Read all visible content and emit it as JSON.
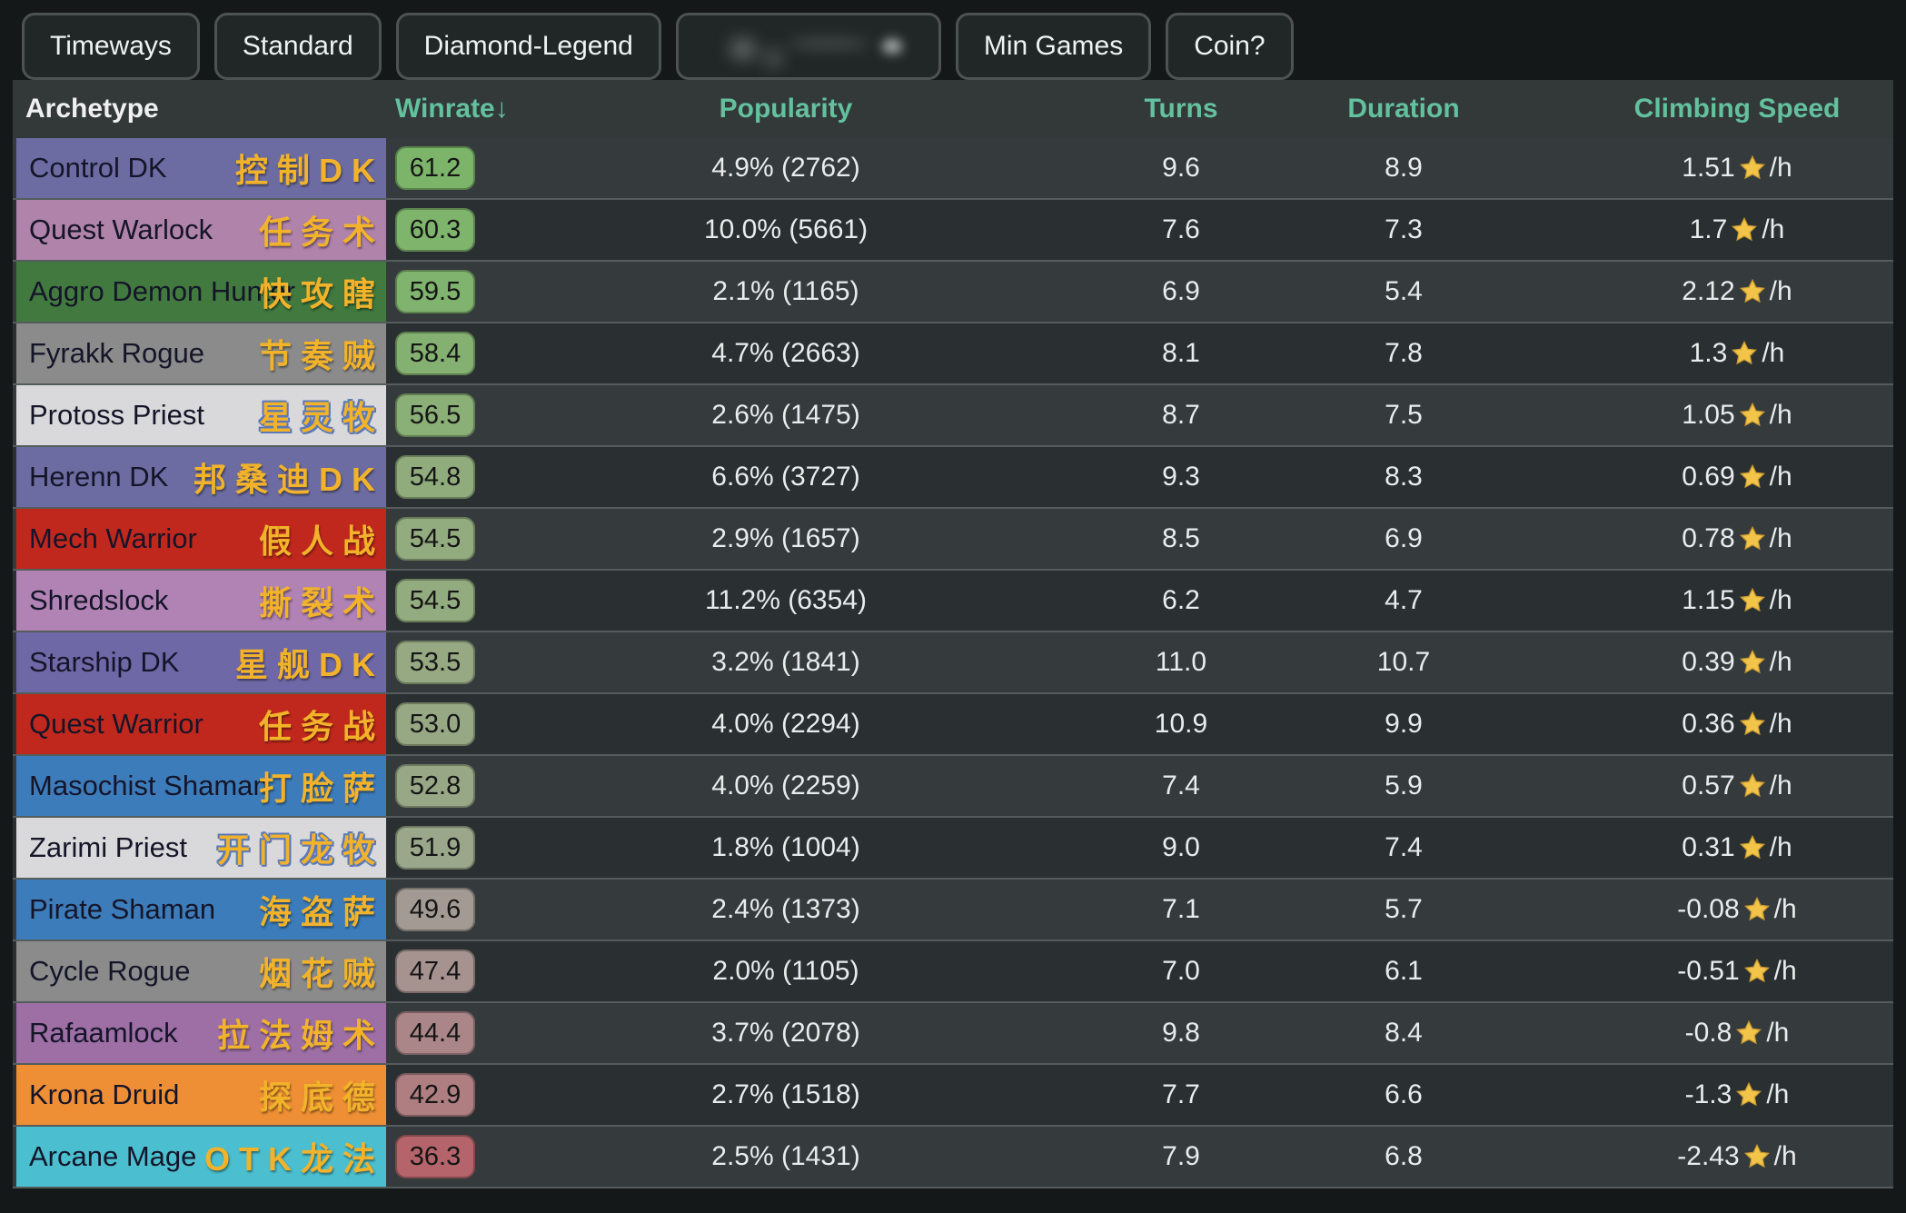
{
  "toolbar": {
    "buttons": [
      {
        "label": "Timeways",
        "censored": false
      },
      {
        "label": "Standard",
        "censored": false
      },
      {
        "label": "Diamond-Legend",
        "censored": false
      },
      {
        "label": "",
        "censored": true
      },
      {
        "label": "Min Games",
        "censored": false
      },
      {
        "label": "Coin?",
        "censored": false
      }
    ]
  },
  "table": {
    "headers": {
      "archetype": "Archetype",
      "winrate": "Winrate↓",
      "popularity": "Popularity",
      "turns": "Turns",
      "duration": "Duration",
      "climbing_speed": "Climbing Speed"
    },
    "climb_unit": "/h",
    "star_color": "#f2c54a",
    "rows": [
      {
        "name": "Control DK",
        "nickname": "控 制 D K",
        "bg": "#6c6ca2",
        "outline": false,
        "winrate": "61.2",
        "winrate_bg": "#7cb56a",
        "popularity": "4.9% (2762)",
        "turns": "9.6",
        "duration": "8.9",
        "climb": "1.51"
      },
      {
        "name": "Quest Warlock",
        "nickname": "任 务 术",
        "bg": "#b083ab",
        "outline": false,
        "winrate": "60.3",
        "winrate_bg": "#7eb46c",
        "popularity": "10.0% (5661)",
        "turns": "7.6",
        "duration": "7.3",
        "climb": "1.7"
      },
      {
        "name": "Aggro Demon Hunter",
        "nickname": "快 攻 瞎",
        "bg": "#41793f",
        "outline": false,
        "winrate": "59.5",
        "winrate_bg": "#80b36e",
        "popularity": "2.1% (1165)",
        "turns": "6.9",
        "duration": "5.4",
        "climb": "2.12"
      },
      {
        "name": "Fyrakk Rogue",
        "nickname": "节 奏 贼",
        "bg": "#8b8b8b",
        "outline": false,
        "winrate": "58.4",
        "winrate_bg": "#84b171",
        "popularity": "4.7% (2663)",
        "turns": "8.1",
        "duration": "7.8",
        "climb": "1.3"
      },
      {
        "name": "Protoss Priest",
        "nickname": "星 灵 牧",
        "bg": "#d9d9db",
        "outline": true,
        "winrate": "56.5",
        "winrate_bg": "#8aaf77",
        "popularity": "2.6% (1475)",
        "turns": "8.7",
        "duration": "7.5",
        "climb": "1.05"
      },
      {
        "name": "Herenn DK",
        "nickname": "邦 桑 迪 D K",
        "bg": "#6c6ca2",
        "outline": false,
        "winrate": "54.8",
        "winrate_bg": "#90ac7d",
        "popularity": "6.6% (3727)",
        "turns": "9.3",
        "duration": "8.3",
        "climb": "0.69"
      },
      {
        "name": "Mech Warrior",
        "nickname": "假 人 战",
        "bg": "#c1281d",
        "outline": false,
        "winrate": "54.5",
        "winrate_bg": "#92ab7f",
        "popularity": "2.9% (1657)",
        "turns": "8.5",
        "duration": "6.9",
        "climb": "0.78"
      },
      {
        "name": "Shredslock",
        "nickname": "撕 裂 术",
        "bg": "#b083b4",
        "outline": false,
        "winrate": "54.5",
        "winrate_bg": "#92ab7f",
        "popularity": "11.2% (6354)",
        "turns": "6.2",
        "duration": "4.7",
        "climb": "1.15"
      },
      {
        "name": "Starship DK",
        "nickname": "星 舰 D K",
        "bg": "#6f68a7",
        "outline": false,
        "winrate": "53.5",
        "winrate_bg": "#96a983",
        "popularity": "3.2% (1841)",
        "turns": "11.0",
        "duration": "10.7",
        "climb": "0.39"
      },
      {
        "name": "Quest Warrior",
        "nickname": "任 务 战",
        "bg": "#c1281d",
        "outline": false,
        "winrate": "53.0",
        "winrate_bg": "#97a884",
        "popularity": "4.0% (2294)",
        "turns": "10.9",
        "duration": "9.9",
        "climb": "0.36"
      },
      {
        "name": "Masochist Shaman",
        "nickname": "打 脸 萨",
        "bg": "#3d7cba",
        "outline": false,
        "winrate": "52.8",
        "winrate_bg": "#98a785",
        "popularity": "4.0% (2259)",
        "turns": "7.4",
        "duration": "5.9",
        "climb": "0.57"
      },
      {
        "name": "Zarimi Priest",
        "nickname": "开 门 龙 牧",
        "bg": "#d9d9db",
        "outline": true,
        "winrate": "51.9",
        "winrate_bg": "#9aa78a",
        "popularity": "1.8% (1004)",
        "turns": "9.0",
        "duration": "7.4",
        "climb": "0.31"
      },
      {
        "name": "Pirate Shaman",
        "nickname": "海 盗 萨",
        "bg": "#3d7cba",
        "outline": false,
        "winrate": "49.6",
        "winrate_bg": "#a39a94",
        "popularity": "2.4% (1373)",
        "turns": "7.1",
        "duration": "5.7",
        "climb": "-0.08"
      },
      {
        "name": "Cycle Rogue",
        "nickname": "烟 花 贼",
        "bg": "#8b8b8b",
        "outline": false,
        "winrate": "47.4",
        "winrate_bg": "#a69390",
        "popularity": "2.0% (1105)",
        "turns": "7.0",
        "duration": "6.1",
        "climb": "-0.51"
      },
      {
        "name": "Rafaamlock",
        "nickname": "拉 法 姆 术",
        "bg": "#9d6fa5",
        "outline": false,
        "winrate": "44.4",
        "winrate_bg": "#aa8689",
        "popularity": "3.7% (2078)",
        "turns": "9.8",
        "duration": "8.4",
        "climb": "-0.8"
      },
      {
        "name": "Krona Druid",
        "nickname": "探 底 德",
        "bg": "#ef8f35",
        "outline": false,
        "winrate": "42.9",
        "winrate_bg": "#ae7e81",
        "popularity": "2.7% (1518)",
        "turns": "7.7",
        "duration": "6.6",
        "climb": "-1.3"
      },
      {
        "name": "Arcane Mage",
        "nickname": "O T K 龙 法",
        "bg": "#4bbfcf",
        "outline": false,
        "winrate": "36.3",
        "winrate_bg": "#b4646a",
        "popularity": "2.5% (1431)",
        "turns": "7.9",
        "duration": "6.8",
        "climb": "-2.43"
      }
    ]
  }
}
